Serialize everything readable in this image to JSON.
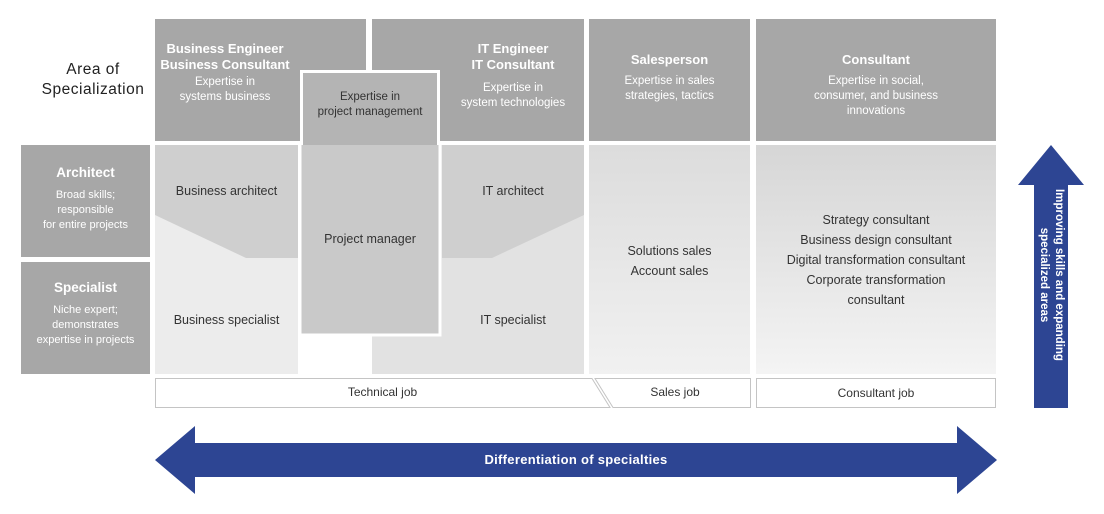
{
  "area_label": "Area of\nSpecialization",
  "headers": {
    "business": {
      "title": "Business Engineer\nBusiness Consultant",
      "desc": "Expertise in\nsystems business"
    },
    "pm": {
      "desc": "Expertise in\nproject management"
    },
    "it": {
      "title": "IT Engineer\nIT Consultant",
      "desc": "Expertise in\nsystem technologies"
    },
    "sales": {
      "title": "Salesperson",
      "desc": "Expertise in sales\nstrategies, tactics"
    },
    "consultant": {
      "title": "Consultant",
      "desc": "Expertise in social,\nconsumer, and business\ninnovations"
    }
  },
  "rows": {
    "architect": {
      "title": "Architect",
      "desc": "Broad skills;\nresponsible\nfor entire projects"
    },
    "specialist": {
      "title": "Specialist",
      "desc": "Niche expert;\ndemonstrates\nexpertise in projects"
    }
  },
  "cells": {
    "business_architect": "Business architect",
    "business_specialist": "Business specialist",
    "project_manager": "Project manager",
    "it_architect": "IT architect",
    "it_specialist": "IT specialist",
    "sales": "Solutions sales\nAccount sales",
    "consultant": "Strategy consultant\nBusiness design consultant\nDigital transformation consultant\nCorporate transformation\nconsultant"
  },
  "jobs": {
    "technical": "Technical job",
    "sales": "Sales job",
    "consultant": "Consultant job"
  },
  "arrows": {
    "horizontal": "Differentiation of specialties",
    "vertical": "Improving skills and expanding\nspecialized areas"
  },
  "colors": {
    "header_gray": "#a7a7a7",
    "arrow_blue": "#2d4593"
  }
}
